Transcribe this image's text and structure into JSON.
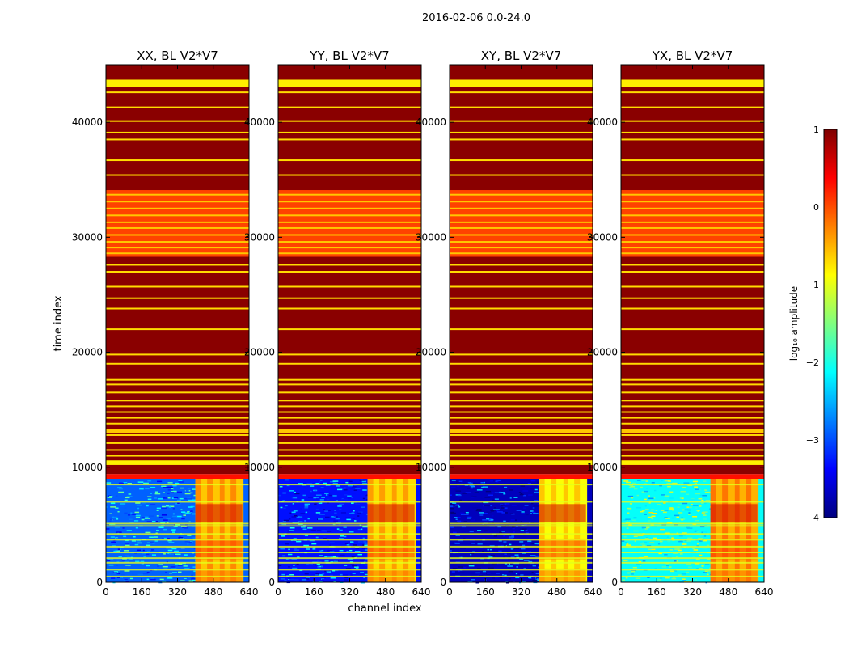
{
  "chart_data": {
    "type": "heatmap",
    "title": "2016-02-06 0.0-24.0",
    "xlabel": "channel index",
    "ylabel": "time index",
    "xlim": [
      0,
      640
    ],
    "ylim": [
      0,
      45000
    ],
    "x_ticks": [
      "0",
      "160",
      "320",
      "480",
      "640"
    ],
    "y_ticks": [
      "0",
      "10000",
      "20000",
      "30000",
      "40000"
    ],
    "panels": [
      {
        "title": "XX, BL V2*V7"
      },
      {
        "title": "YY, BL V2*V7"
      },
      {
        "title": "XY, BL V2*V7"
      },
      {
        "title": "YX, BL V2*V7"
      }
    ],
    "colorbar": {
      "label": "log₁₀ amplitude",
      "range": [
        -4,
        1
      ],
      "ticks": [
        "1",
        "0",
        "−1",
        "−2",
        "−3",
        "−4"
      ],
      "colormap": "jet"
    },
    "bands": [
      {
        "t0": 43100,
        "t1": 43700,
        "value": -0.8
      },
      {
        "t0": 28300,
        "t1": 34100,
        "value": 0.05
      },
      {
        "t0": 10200,
        "t1": 10600,
        "value": -0.8
      },
      {
        "t0": 13000,
        "t1": 13300,
        "value": -0.6
      },
      {
        "t0": 9000,
        "t1": 9400,
        "value": 0.3
      }
    ],
    "lines_top": [
      42600,
      41300,
      40100,
      39100,
      38500,
      36700,
      35400,
      27600,
      27000,
      25700,
      24700,
      23800,
      22000,
      19800,
      19000,
      17600,
      17200,
      16500,
      15800,
      15300,
      14800,
      14300,
      13800,
      12800,
      12100,
      11500,
      11000
    ],
    "lines_mid": [
      33700,
      33100,
      32500,
      31900,
      31300,
      30800,
      30200,
      29600,
      29100,
      28600
    ],
    "lines_low": [
      8500,
      7000,
      5100,
      4900,
      4200,
      3700,
      3100,
      2600,
      2100,
      1700,
      1100,
      500
    ],
    "active_channels": [
      400,
      610
    ],
    "background_level": [
      -2.9,
      -3.3,
      -3.7,
      -2.1
    ],
    "active_level": [
      -0.3,
      -0.4,
      -0.6,
      -0.2
    ]
  }
}
